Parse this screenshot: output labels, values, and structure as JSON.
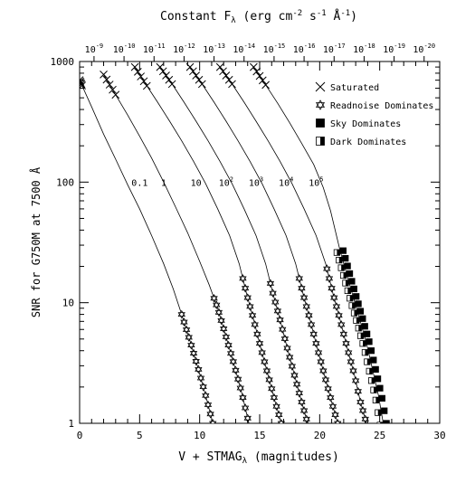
{
  "chart_data": {
    "type": "line",
    "top_axis_title_main": "Constant F",
    "top_axis_title_sub": "λ",
    "top_axis_title_units": " (erg cm",
    "top_axis_title_units_sup1": "-2",
    "top_axis_title_units_mid1": " s",
    "top_axis_title_units_sup2": "-1",
    "top_axis_title_units_mid2": " Å",
    "top_axis_title_units_sup3": "-1",
    "top_axis_title_units_end": ")",
    "xlabel_main": "V + STMAG",
    "xlabel_sub": "λ",
    "xlabel_units": " (magnitudes)",
    "ylabel": "SNR for G750M at 7500 Å",
    "xlim": [
      0,
      30
    ],
    "ylim": [
      1,
      1000
    ],
    "y_scale": "log",
    "x_ticks": [
      {
        "v": 0,
        "t": "0"
      },
      {
        "v": 5,
        "t": "5"
      },
      {
        "v": 10,
        "t": "10"
      },
      {
        "v": 15,
        "t": "15"
      },
      {
        "v": 20,
        "t": "20"
      },
      {
        "v": 25,
        "t": "25"
      },
      {
        "v": 30,
        "t": "30"
      }
    ],
    "y_ticks": [
      {
        "v": 1,
        "t": "1"
      },
      {
        "v": 10,
        "t": "10"
      },
      {
        "v": 100,
        "t": "100"
      },
      {
        "v": 1000,
        "t": "1000"
      }
    ],
    "top_ticks": [
      {
        "mag": 1.2,
        "exp": "-9"
      },
      {
        "mag": 3.7,
        "exp": "-10"
      },
      {
        "mag": 6.2,
        "exp": "-11"
      },
      {
        "mag": 8.7,
        "exp": "-12"
      },
      {
        "mag": 11.2,
        "exp": "-13"
      },
      {
        "mag": 13.7,
        "exp": "-14"
      },
      {
        "mag": 16.2,
        "exp": "-15"
      },
      {
        "mag": 18.7,
        "exp": "-16"
      },
      {
        "mag": 21.2,
        "exp": "-17"
      },
      {
        "mag": 23.7,
        "exp": "-18"
      },
      {
        "mag": 26.2,
        "exp": "-19"
      },
      {
        "mag": 28.7,
        "exp": "-20"
      }
    ],
    "top_tick_base": "10",
    "legend_position": "top-right",
    "legend": [
      {
        "symbol": "saturated",
        "label": "Saturated"
      },
      {
        "symbol": "readnoise",
        "label": "Readnoise Dominates"
      },
      {
        "symbol": "sky",
        "label": "Sky Dominates"
      },
      {
        "symbol": "dark",
        "label": "Dark Dominates"
      }
    ],
    "series": [
      {
        "label_base": "0.1",
        "label_sup": "",
        "label_x": 5.0,
        "label_y": 100,
        "points": [
          [
            0,
            700
          ],
          [
            1,
            420
          ],
          [
            2,
            250
          ],
          [
            3,
            155
          ],
          [
            4,
            95
          ],
          [
            5,
            60
          ],
          [
            6,
            36
          ],
          [
            7,
            21
          ],
          [
            7.8,
            13
          ],
          [
            8.5,
            8
          ],
          [
            9.2,
            4.8
          ],
          [
            9.9,
            2.8
          ],
          [
            10.5,
            1.7
          ],
          [
            11.1,
            1.0
          ]
        ],
        "saturated_x": [
          0,
          0.2
        ],
        "readnoise_from": 8.5
      },
      {
        "label_base": "1",
        "label_sup": "",
        "label_x": 7.0,
        "label_y": 100,
        "points": [
          [
            2,
            780
          ],
          [
            3,
            530
          ],
          [
            4,
            360
          ],
          [
            5,
            240
          ],
          [
            6,
            158
          ],
          [
            7,
            100
          ],
          [
            8,
            62
          ],
          [
            9,
            38
          ],
          [
            10,
            22
          ],
          [
            10.8,
            14
          ],
          [
            11.5,
            9
          ],
          [
            12.2,
            5.2
          ],
          [
            12.9,
            3
          ],
          [
            13.5,
            1.8
          ],
          [
            14.1,
            1.0
          ]
        ],
        "saturated_x": [
          2.0,
          3.0
        ],
        "readnoise_from": 11.2
      },
      {
        "label_base": "10",
        "label_sup": "",
        "label_x": 9.7,
        "label_y": 100,
        "points": [
          [
            4.6,
            900
          ],
          [
            5.5,
            650
          ],
          [
            6.5,
            460
          ],
          [
            7.5,
            320
          ],
          [
            8.5,
            220
          ],
          [
            9.5,
            148
          ],
          [
            10.5,
            97
          ],
          [
            11.5,
            60
          ],
          [
            12.5,
            36
          ],
          [
            13.3,
            21
          ],
          [
            13.9,
            12
          ],
          [
            14.5,
            7.2
          ],
          [
            15.1,
            4.2
          ],
          [
            15.7,
            2.5
          ],
          [
            16.3,
            1.5
          ],
          [
            16.8,
            1.0
          ]
        ],
        "saturated_x": [
          4.6,
          5.6
        ],
        "readnoise_from": 13.6
      },
      {
        "label_base": "10",
        "label_sup": "2",
        "label_x": 12.2,
        "label_y": 100,
        "points": [
          [
            6.7,
            900
          ],
          [
            7.7,
            650
          ],
          [
            8.7,
            460
          ],
          [
            9.7,
            320
          ],
          [
            10.7,
            220
          ],
          [
            11.7,
            148
          ],
          [
            12.7,
            97
          ],
          [
            13.7,
            60
          ],
          [
            14.7,
            36
          ],
          [
            15.5,
            21
          ],
          [
            16.1,
            12
          ],
          [
            16.7,
            7.2
          ],
          [
            17.3,
            4.2
          ],
          [
            17.9,
            2.5
          ],
          [
            18.5,
            1.5
          ],
          [
            19.0,
            1.0
          ]
        ],
        "saturated_x": [
          6.7,
          7.7
        ],
        "readnoise_from": 15.9
      },
      {
        "label_base": "10",
        "label_sup": "3",
        "label_x": 14.7,
        "label_y": 100,
        "points": [
          [
            9.2,
            900
          ],
          [
            10.2,
            650
          ],
          [
            11.2,
            460
          ],
          [
            12.2,
            320
          ],
          [
            13.2,
            220
          ],
          [
            14.2,
            148
          ],
          [
            15.2,
            97
          ],
          [
            16.2,
            60
          ],
          [
            17.2,
            36
          ],
          [
            18.0,
            21
          ],
          [
            18.6,
            12
          ],
          [
            19.2,
            7.2
          ],
          [
            19.8,
            4.2
          ],
          [
            20.4,
            2.5
          ],
          [
            21.0,
            1.5
          ],
          [
            21.5,
            1.0
          ]
        ],
        "saturated_x": [
          9.2,
          10.2
        ],
        "readnoise_from": 18.3
      },
      {
        "label_base": "10",
        "label_sup": "4",
        "label_x": 17.2,
        "label_y": 100,
        "points": [
          [
            11.7,
            900
          ],
          [
            12.7,
            650
          ],
          [
            13.7,
            460
          ],
          [
            14.7,
            320
          ],
          [
            15.7,
            220
          ],
          [
            16.7,
            148
          ],
          [
            17.7,
            97
          ],
          [
            18.7,
            60
          ],
          [
            19.7,
            36
          ],
          [
            20.5,
            21
          ],
          [
            21.1,
            12
          ],
          [
            21.7,
            7.2
          ],
          [
            22.3,
            4.2
          ],
          [
            22.9,
            2.5
          ],
          [
            23.4,
            1.5
          ],
          [
            23.9,
            1.0
          ]
        ],
        "saturated_x": [
          11.7,
          12.7
        ],
        "readnoise_from": 20.6
      },
      {
        "label_base": "10",
        "label_sup": "5",
        "label_x": 19.7,
        "label_y": 100,
        "points": [
          [
            14.5,
            900
          ],
          [
            15.5,
            640
          ],
          [
            16.5,
            450
          ],
          [
            17.5,
            310
          ],
          [
            18.5,
            210
          ],
          [
            19.5,
            140
          ],
          [
            20.3,
            90
          ],
          [
            20.9,
            58
          ],
          [
            21.4,
            36
          ],
          [
            21.7,
            27
          ],
          [
            22.2,
            18
          ],
          [
            22.7,
            12
          ],
          [
            23.3,
            7.5
          ],
          [
            23.9,
            4.6
          ],
          [
            24.4,
            2.8
          ],
          [
            24.9,
            1.7
          ],
          [
            25.3,
            1.0
          ]
        ],
        "saturated_x": [
          14.5,
          15.5
        ],
        "readnoise_from": 99,
        "sky_from": 21.7
      }
    ]
  }
}
